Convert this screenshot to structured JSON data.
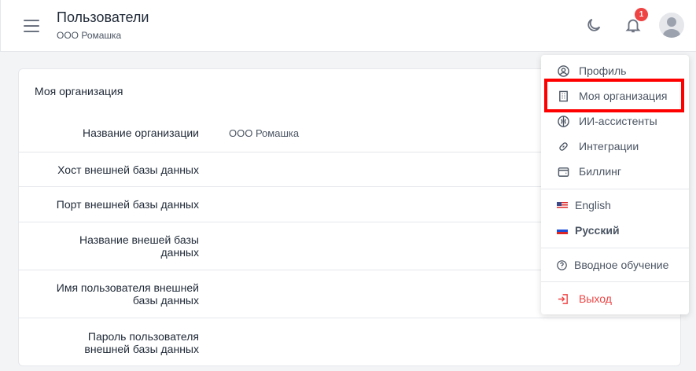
{
  "header": {
    "title": "Пользователи",
    "subtitle": "ООО Ромашка",
    "notifications_count": "1"
  },
  "card": {
    "title": "Моя организация",
    "rows": [
      {
        "label": "Название организации",
        "value": "ООО Ромашка"
      },
      {
        "label": "Хост внешней базы данных",
        "value": ""
      },
      {
        "label": "Порт внешней базы данных",
        "value": ""
      },
      {
        "label": "Название внешей базы данных",
        "value": ""
      },
      {
        "label": "Имя пользователя внешней базы данных",
        "value": ""
      },
      {
        "label": "Пароль пользователя внешней базы данных",
        "value": ""
      }
    ]
  },
  "menu": {
    "items": [
      "Профиль",
      "Моя организация",
      "ИИ-ассистенты",
      "Интеграции",
      "Биллинг"
    ],
    "languages": [
      "English",
      "Русский"
    ],
    "onboarding": "Вводное обучение",
    "logout": "Выход"
  },
  "colors": {
    "accent_highlight": "#ff0000",
    "logout": "#ef4444",
    "badge": "#ef4444"
  }
}
